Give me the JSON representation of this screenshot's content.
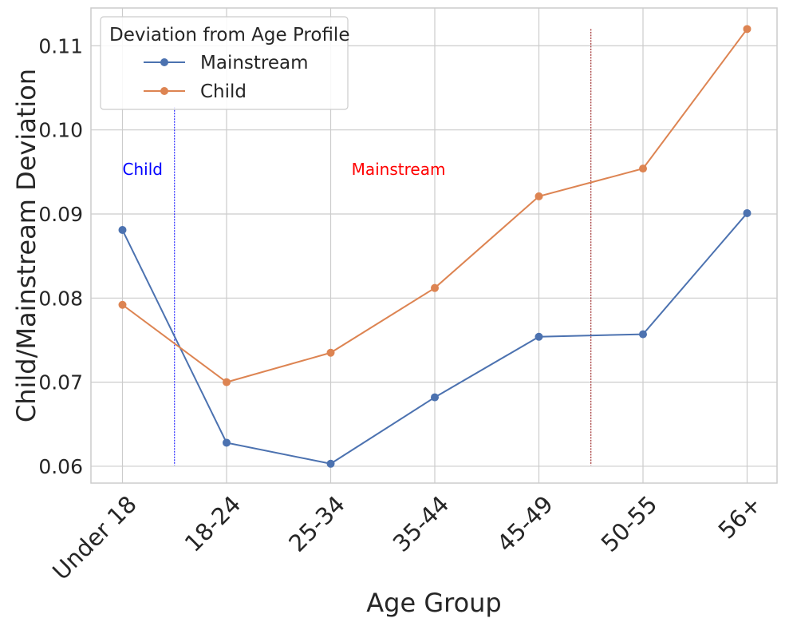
{
  "chart_data": {
    "type": "line",
    "xlabel": "Age Group",
    "ylabel": "Child/Mainstream Deviation",
    "categories": [
      "Under 18",
      "18-24",
      "25-34",
      "35-44",
      "45-49",
      "50-55",
      "56+"
    ],
    "ylim": [
      0.058,
      0.1145
    ],
    "yticks": [
      0.06,
      0.07,
      0.08,
      0.09,
      0.1,
      0.11
    ],
    "ytick_labels": [
      "0.06",
      "0.07",
      "0.08",
      "0.09",
      "0.10",
      "0.11"
    ],
    "grid": true,
    "legend": {
      "title": "Deviation from Age Profile",
      "placement": "top-left"
    },
    "series": [
      {
        "name": "Mainstream",
        "color": "#4c72b0",
        "values": [
          0.0881,
          0.0628,
          0.0603,
          0.0682,
          0.0754,
          0.0757,
          0.0901
        ]
      },
      {
        "name": "Child",
        "color": "#dd8452",
        "values": [
          0.0792,
          0.07,
          0.0735,
          0.0812,
          0.0921,
          0.0954,
          0.112
        ]
      }
    ],
    "reference_lines": [
      {
        "x": 0.5,
        "color": "#0000ff",
        "y_range": [
          0.0603,
          0.1027
        ]
      },
      {
        "x": 4.5,
        "color": "#8b0000",
        "y_range": [
          0.0603,
          0.112
        ]
      }
    ],
    "annotations": [
      {
        "text": "Child",
        "x": 0,
        "y": 0.0953,
        "color": "#0000ff"
      },
      {
        "text": "Mainstream",
        "x": 2.2,
        "y": 0.0953,
        "color": "#ff0000"
      }
    ]
  }
}
